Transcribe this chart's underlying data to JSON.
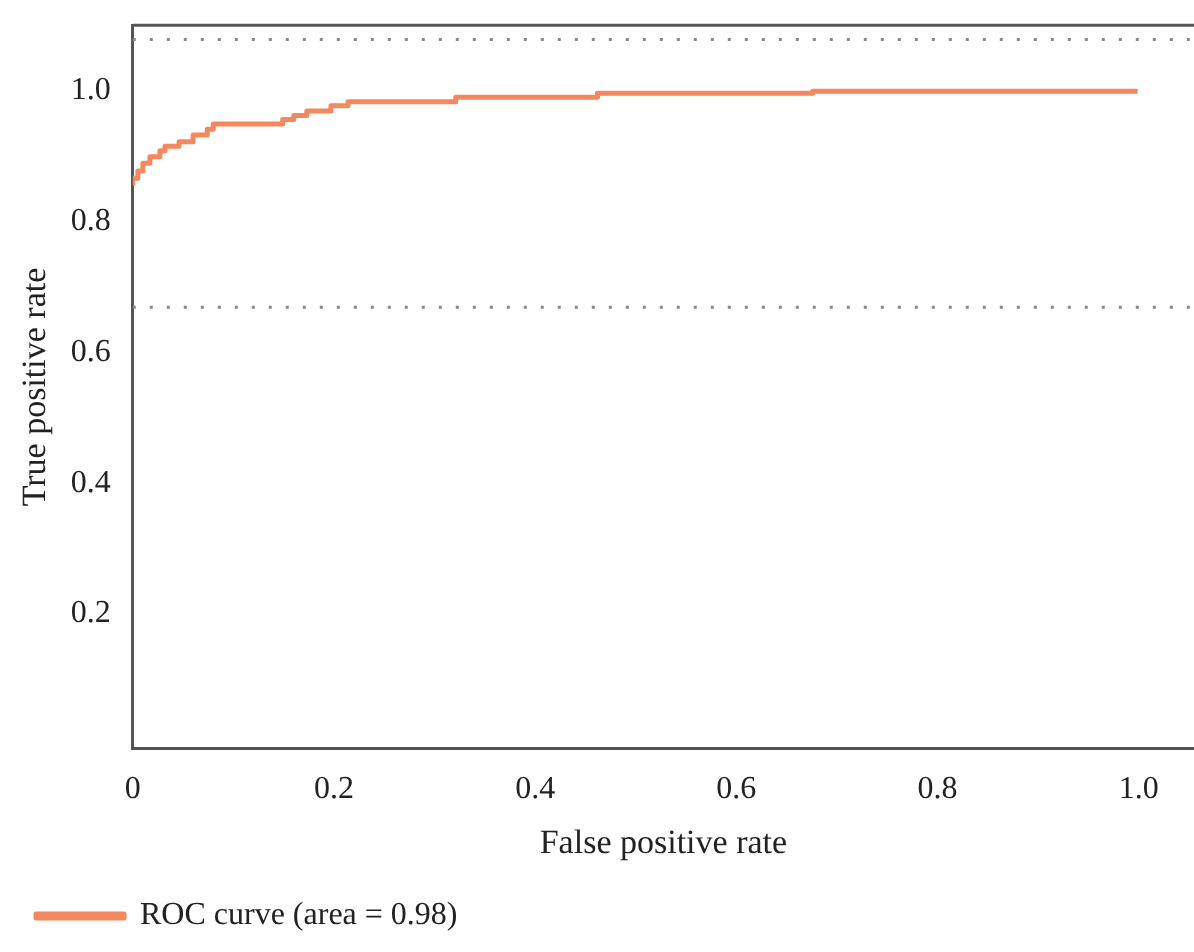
{
  "chart_data": {
    "type": "step",
    "xlabel": "False positive rate",
    "ylabel": "True positive rate",
    "series": [
      {
        "name": "ROC curve (area = 0.98)",
        "color": "#f4895f",
        "x": [
          0,
          0.005,
          0.01,
          0.017,
          0.027,
          0.032,
          0.046,
          0.06,
          0.074,
          0.08,
          0.149,
          0.16,
          0.173,
          0.197,
          0.214,
          0.321,
          0.462,
          0.676,
          0.705,
          0.999
        ],
        "values": [
          0.855,
          0.866,
          0.877,
          0.889,
          0.899,
          0.908,
          0.915,
          0.922,
          0.932,
          0.941,
          0.949,
          0.956,
          0.962,
          0.969,
          0.977,
          0.983,
          0.99,
          0.996,
          0.999,
          0.999
        ]
      }
    ],
    "xlim": [
      0,
      1.055
    ],
    "ylim": [
      -0.006,
      1.1
    ],
    "xticks": [
      0,
      {
        "value": 0.2,
        "label": "0.2"
      },
      {
        "value": 0.4,
        "label": "0.4"
      },
      {
        "value": 0.6,
        "label": "0.6"
      },
      {
        "value": 0.8,
        "label": "0.8"
      },
      {
        "value": 1,
        "label": "1.0"
      }
    ],
    "yticks": [
      {
        "value": 0.2,
        "label": "0.2"
      },
      {
        "value": 0.4,
        "label": "0.4"
      },
      {
        "value": 0.6,
        "label": "0.6"
      },
      {
        "value": 0.8,
        "label": "0.8"
      },
      {
        "value": 1,
        "label": "1.0"
      }
    ],
    "ref_lines": [
      {
        "axis": "y",
        "value": 1.078,
        "color": "#888888",
        "line_style": "dotted"
      },
      {
        "axis": "y",
        "value": 0.669,
        "color": "#888888",
        "line_style": "dotted"
      }
    ],
    "grid": false,
    "legend": "bottom left",
    "marker": "none",
    "line_style": "solid"
  }
}
